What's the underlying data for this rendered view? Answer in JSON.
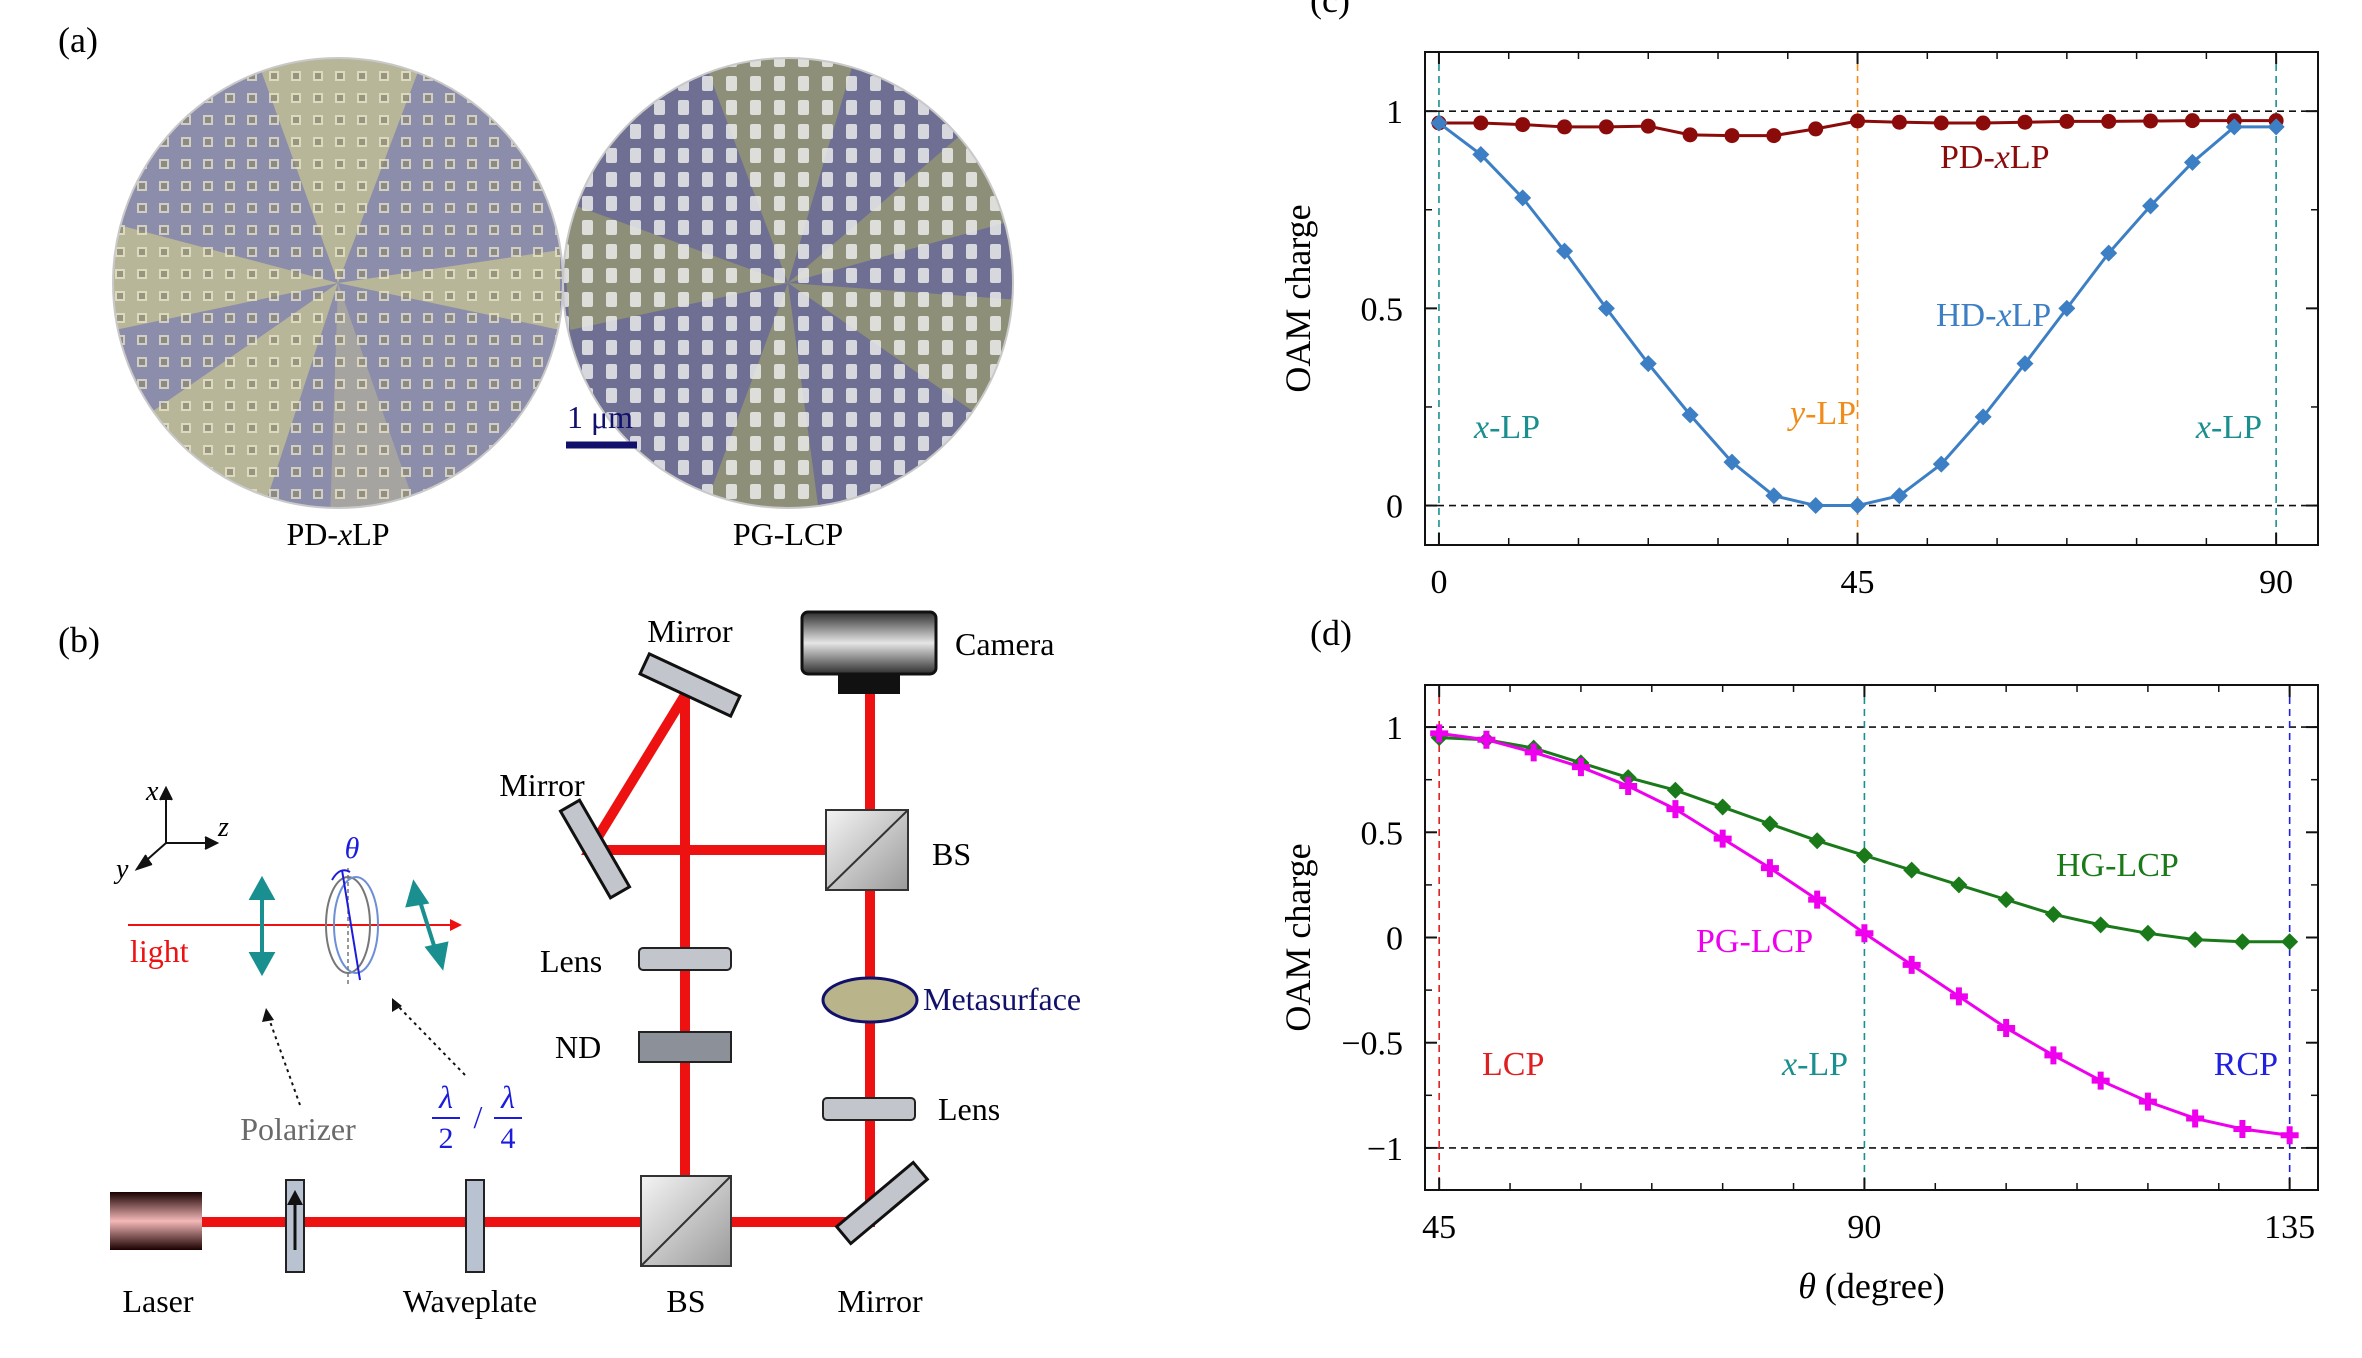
{
  "panel_a": {
    "label": "(a)",
    "left_caption": "PD-",
    "left_caption_italic": "x",
    "left_caption_end": "LP",
    "right_caption": "PG-LCP",
    "scale_bar_label": "1 μm"
  },
  "panel_b": {
    "label": "(b)",
    "mirror_top": "Mirror",
    "mirror_left": "Mirror",
    "mirror_bottom": "Mirror",
    "camera": "Camera",
    "bs_top": "BS",
    "bs_bottom": "BS",
    "lens_left": "Lens",
    "lens_right": "Lens",
    "nd": "ND",
    "metasurface": "Metasurface",
    "laser": "Laser",
    "waveplate": "Waveplate",
    "polarizer": "Polarizer",
    "light": "light",
    "axis_x": "x",
    "axis_y": "y",
    "axis_z": "z",
    "theta": "θ",
    "lambda": "λ",
    "two": "2",
    "four": "4",
    "slash": "/"
  },
  "chart_data": [
    {
      "panel": "(c)",
      "type": "line",
      "title": "",
      "xlabel": "",
      "ylabel": "OAM charge",
      "xlim": [
        -1.5,
        94.5
      ],
      "ylim": [
        -0.1,
        1.15
      ],
      "x_ticks": [
        "0",
        "45",
        "90"
      ],
      "y_ticks": [
        "0",
        "0.5",
        "1"
      ],
      "series": [
        {
          "name": "PD-xLP",
          "color": "#8b0b0b",
          "marker": "circle",
          "x": [
            0,
            4.5,
            9,
            13.5,
            18,
            22.5,
            27,
            31.5,
            36,
            40.5,
            45,
            49.5,
            54,
            58.5,
            63,
            67.5,
            72,
            76.5,
            81,
            85.5,
            90
          ],
          "values": [
            0.97,
            0.97,
            0.966,
            0.96,
            0.96,
            0.962,
            0.94,
            0.938,
            0.938,
            0.955,
            0.975,
            0.972,
            0.97,
            0.97,
            0.972,
            0.974,
            0.974,
            0.975,
            0.976,
            0.976,
            0.976
          ]
        },
        {
          "name": "HD-xLP",
          "color": "#3d7fc4",
          "marker": "diamond",
          "x": [
            0,
            4.5,
            9,
            13.5,
            18,
            22.5,
            27,
            31.5,
            36,
            40.5,
            45,
            49.5,
            54,
            58.5,
            63,
            67.5,
            72,
            76.5,
            81,
            85.5,
            90
          ],
          "values": [
            0.97,
            0.89,
            0.78,
            0.645,
            0.5,
            0.36,
            0.23,
            0.11,
            0.025,
            0.0,
            0.0,
            0.025,
            0.105,
            0.225,
            0.36,
            0.5,
            0.64,
            0.76,
            0.87,
            0.96,
            0.96
          ]
        }
      ],
      "annotations": [
        {
          "text": "PD-",
          "italic": "x",
          "end": "LP",
          "color": "#8b0b0b"
        },
        {
          "text": "HD-",
          "italic": "x",
          "end": "LP",
          "color": "#3d7fc4"
        },
        {
          "text": "",
          "italic": "x",
          "end": "-LP",
          "color": "#1a8f8f"
        },
        {
          "text": "",
          "italic": "y",
          "end": "-LP",
          "color": "#f08c1a"
        },
        {
          "text": "",
          "italic": "x",
          "end": "-LP",
          "color": "#1a8f8f"
        }
      ]
    },
    {
      "panel": "(d)",
      "type": "line",
      "title": "",
      "xlabel": "θ (degree)",
      "ylabel": "OAM charge",
      "xlim": [
        43.5,
        138
      ],
      "ylim": [
        -1.2,
        1.2
      ],
      "x_ticks": [
        "45",
        "90",
        "135"
      ],
      "y_ticks": [
        "−1",
        "−0.5",
        "0",
        "0.5",
        "1"
      ],
      "series": [
        {
          "name": "HG-LCP",
          "color": "#1a7a1a",
          "marker": "diamond",
          "x": [
            45,
            50,
            55,
            60,
            65,
            70,
            75,
            80,
            85,
            90,
            95,
            100,
            105,
            110,
            115,
            120,
            125,
            130,
            135
          ],
          "values": [
            0.95,
            0.94,
            0.9,
            0.83,
            0.76,
            0.7,
            0.62,
            0.54,
            0.46,
            0.39,
            0.32,
            0.25,
            0.18,
            0.11,
            0.06,
            0.02,
            -0.01,
            -0.02,
            -0.02
          ]
        },
        {
          "name": "PG-LCP",
          "color": "#ee00ee",
          "marker": "plus",
          "x": [
            45,
            50,
            55,
            60,
            65,
            70,
            75,
            80,
            85,
            90,
            95,
            100,
            105,
            110,
            115,
            120,
            125,
            130,
            135
          ],
          "values": [
            0.97,
            0.94,
            0.88,
            0.81,
            0.72,
            0.61,
            0.47,
            0.33,
            0.18,
            0.02,
            -0.13,
            -0.28,
            -0.43,
            -0.56,
            -0.68,
            -0.78,
            -0.86,
            -0.91,
            -0.94
          ]
        }
      ],
      "annotations": [
        {
          "text": "HG-LCP",
          "color": "#1a7a1a"
        },
        {
          "text": "PG-LCP",
          "color": "#ee00ee"
        },
        {
          "text": "LCP",
          "color": "#e02020"
        },
        {
          "text": "",
          "italic": "x",
          "end": "-LP",
          "color": "#1a8f8f"
        },
        {
          "text": "RCP",
          "color": "#2020e0"
        }
      ]
    }
  ]
}
